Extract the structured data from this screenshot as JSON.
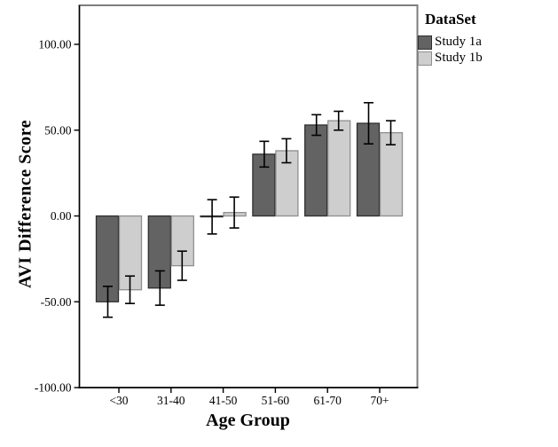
{
  "figure": {
    "background": "#ffffff"
  },
  "chart_data": {
    "type": "bar",
    "title": "",
    "xlabel": "Age Group",
    "ylabel": "AVI Difference Score",
    "categories": [
      "<30",
      "31-40",
      "41-50",
      "51-60",
      "61-70",
      "70+"
    ],
    "series": [
      {
        "name": "Study 1a",
        "values": [
          -50,
          -42,
          -0.5,
          36,
          53,
          54
        ],
        "errors": [
          9,
          10,
          10,
          7.5,
          6,
          12
        ],
        "color": "#636363",
        "border_color": "#2f2f2f"
      },
      {
        "name": "Study 1b",
        "values": [
          -43,
          -29,
          2,
          38,
          55.5,
          48.5
        ],
        "errors": [
          8,
          8.5,
          9,
          7,
          5.5,
          7
        ],
        "color": "#cecece",
        "border_color": "#8f8f8f"
      }
    ],
    "y_ticks": [
      {
        "value": 100,
        "label": "100.00"
      },
      {
        "value": 50,
        "label": "50.00"
      },
      {
        "value": 0,
        "label": "0.00"
      },
      {
        "value": -50,
        "label": "-50.00"
      },
      {
        "value": -100,
        "label": "-100.00"
      }
    ],
    "ylim": [
      -100,
      122.5
    ],
    "grid": false,
    "error_bars": true,
    "legend": {
      "title": "DataSet",
      "position": "top-right-outside"
    },
    "colors": {
      "axis": "#000000",
      "frame": "#7e7e7e",
      "error_bar": "#000000",
      "tick_label": "#000000"
    }
  }
}
